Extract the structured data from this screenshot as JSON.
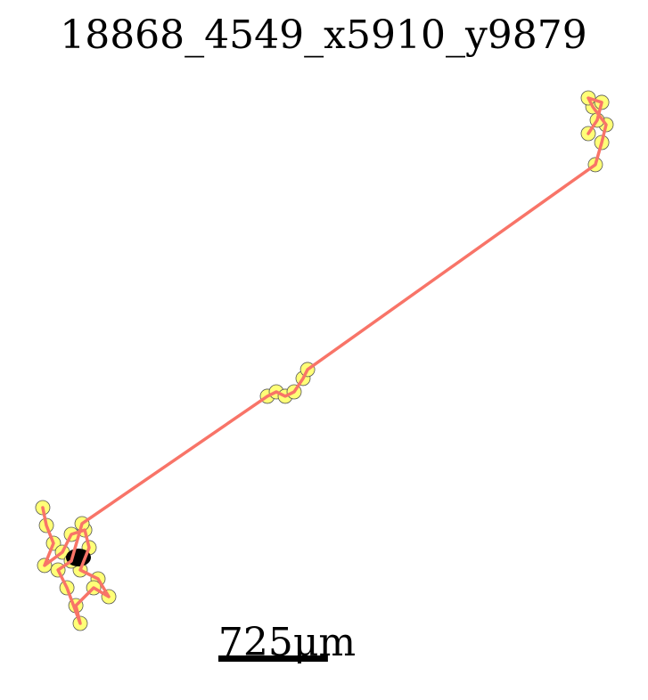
{
  "chart_data": {
    "type": "trajectory",
    "title": "18868_4549_x5910_y9879",
    "scale_bar": {
      "value": 725,
      "label": "725μm"
    },
    "xlim": [
      0,
      3894
    ],
    "ylim": [
      0,
      3894
    ],
    "point_color": "#ffff77",
    "line_color": "#f87468",
    "x": [
      47,
      71,
      118,
      59,
      177,
      236,
      325,
      354,
      295,
      413,
      484,
      384,
      266,
      295,
      207,
      148,
      236,
      307,
      1534,
      1593,
      1652,
      1711,
      1770,
      1800,
      3705,
      3747,
      3776,
      3688,
      3658,
      3747,
      3717,
      3658
    ],
    "y": [
      885,
      767,
      649,
      502,
      590,
      708,
      737,
      620,
      472,
      413,
      295,
      354,
      236,
      118,
      354,
      472,
      531,
      779,
      1623,
      1652,
      1623,
      1652,
      1741,
      1800,
      3157,
      3304,
      3422,
      3540,
      3599,
      3570,
      3452,
      3363
    ]
  }
}
